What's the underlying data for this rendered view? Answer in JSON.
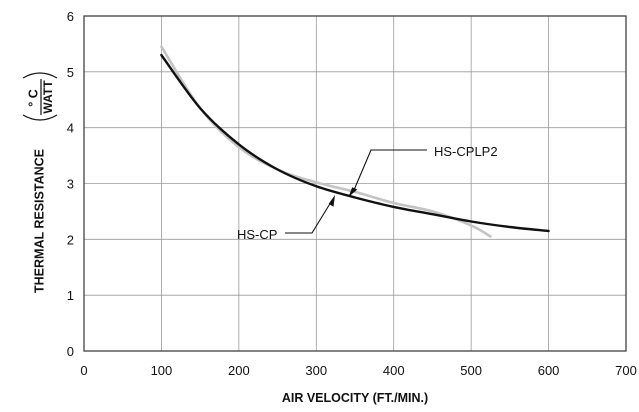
{
  "chart_data": {
    "type": "line",
    "xlabel": "AIR VELOCITY (FT./MIN.)",
    "ylabel": "THERMAL RESISTANCE",
    "ylabel_unit_numerator": "° C",
    "ylabel_unit_denominator": "WATT",
    "xlim": [
      0,
      700
    ],
    "ylim": [
      0,
      6
    ],
    "xticks": [
      "0",
      "100",
      "200",
      "300",
      "400",
      "500",
      "600",
      "700"
    ],
    "yticks": [
      "0",
      "1",
      "2",
      "3",
      "4",
      "5",
      "6"
    ],
    "grid": true,
    "series": [
      {
        "name": "HS-CP",
        "color": "#111111",
        "x": [
          100,
          150,
          200,
          250,
          300,
          350,
          400,
          450,
          500,
          550,
          600
        ],
        "y": [
          5.3,
          4.35,
          3.7,
          3.25,
          2.95,
          2.75,
          2.58,
          2.45,
          2.32,
          2.22,
          2.15
        ]
      },
      {
        "name": "HS-CPLP2",
        "color": "#c4c4c4",
        "x": [
          100,
          150,
          200,
          250,
          300,
          350,
          400,
          450,
          500,
          525
        ],
        "y": [
          5.45,
          4.35,
          3.65,
          3.25,
          3.02,
          2.85,
          2.65,
          2.5,
          2.25,
          2.05
        ]
      }
    ],
    "annotations": [
      {
        "text": "HS-CPLP2",
        "series": "HS-CPLP2"
      },
      {
        "text": "HS-CP",
        "series": "HS-CP"
      }
    ]
  }
}
